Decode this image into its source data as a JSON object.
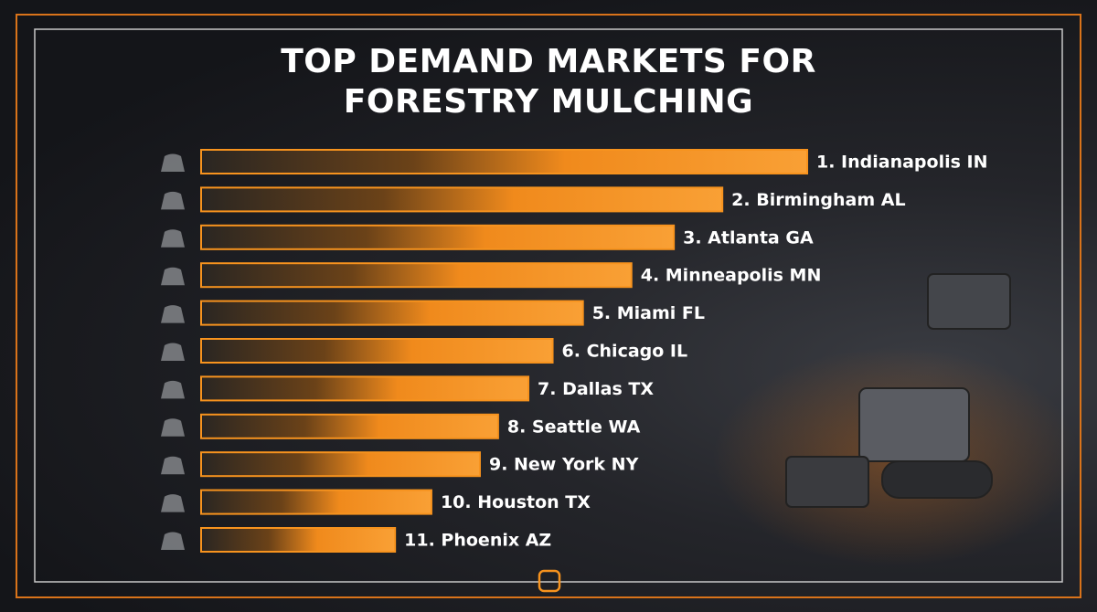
{
  "chart_data": {
    "type": "hbar",
    "title": "TOP DEMAND MARKETS FOR FORESTRY MULCHING",
    "categories": [
      "1. Indianapolis IN",
      "2. Birmingham AL",
      "3. Atlanta GA",
      "4. Minneapolis MN",
      "5. Miami FL",
      "6. Chicago IL",
      "7. Dallas TX",
      "8. Seattle WA",
      "9. New York NY",
      "10. Houston TX",
      "11. Phoenix AZ"
    ],
    "values": [
      100,
      86,
      78,
      71,
      63,
      58,
      54,
      49,
      46,
      38,
      32
    ],
    "xlim": [
      0,
      100
    ],
    "color": "#f7931e"
  }
}
